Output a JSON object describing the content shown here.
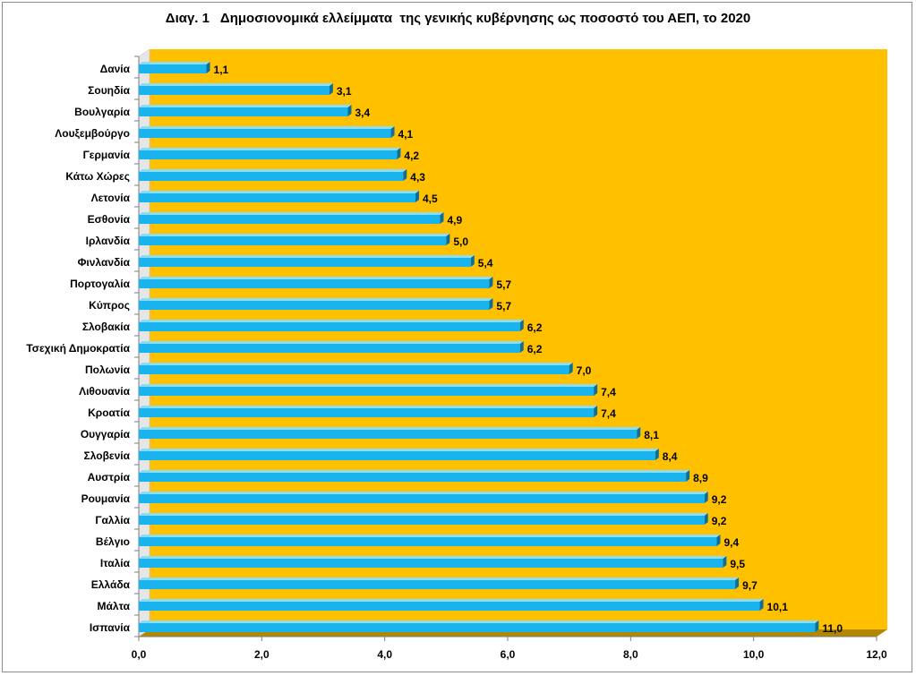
{
  "chart_data": {
    "type": "bar",
    "orientation": "horizontal",
    "title": "Διαγ. 1   Δημοσιονομικά ελλείμματα  της γενικής κυβέρνησης ως ποσοστό του ΑΕΠ, το 2020",
    "categories": [
      "Δανία",
      "Σουηδία",
      "Βουλγαρία",
      "Λουξεμβούργο",
      "Γερμανία",
      "Κάτω Χώρες",
      "Λετονία",
      "Εσθονία",
      "Ιρλανδία",
      "Φινλανδία",
      "Πορτογαλία",
      "Κύπρος",
      "Σλοβακία",
      "Τσεχική Δημοκρατία",
      "Πολωνία",
      "Λιθουανία",
      "Κροατία",
      "Ουγγαρία",
      "Σλοβενία",
      "Αυστρία",
      "Ρουμανία",
      "Γαλλία",
      "Βέλγιο",
      "Ιταλία",
      "Ελλάδα",
      "Μάλτα",
      "Ισπανία"
    ],
    "values": [
      1.1,
      3.1,
      3.4,
      4.1,
      4.2,
      4.3,
      4.5,
      4.9,
      5.0,
      5.4,
      5.7,
      5.7,
      6.2,
      6.2,
      7.0,
      7.4,
      7.4,
      8.1,
      8.4,
      8.9,
      9.2,
      9.2,
      9.4,
      9.5,
      9.7,
      10.1,
      11.0
    ],
    "value_labels": [
      "1,1",
      "3,1",
      "3,4",
      "4,1",
      "4,2",
      "4,3",
      "4,5",
      "4,9",
      "5,0",
      "5,4",
      "5,7",
      "5,7",
      "6,2",
      "6,2",
      "7,0",
      "7,4",
      "7,4",
      "8,1",
      "8,4",
      "8,9",
      "9,2",
      "9,2",
      "9,4",
      "9,5",
      "9,7",
      "10,1",
      "11,0"
    ],
    "xlim": [
      0,
      12
    ],
    "x_ticks": [
      "0,0",
      "2,0",
      "4,0",
      "6,0",
      "8,0",
      "10,0",
      "12,0"
    ],
    "xlabel": "",
    "ylabel": "",
    "grid": false,
    "legend": "none",
    "colors": {
      "plot_background": "#FFC000",
      "plot_floor": "#B38600",
      "bar_front": "#19B4EE",
      "bar_top": "#8BDCF8",
      "bar_side": "#0E6E96",
      "axis": "#7f7f7f"
    }
  }
}
